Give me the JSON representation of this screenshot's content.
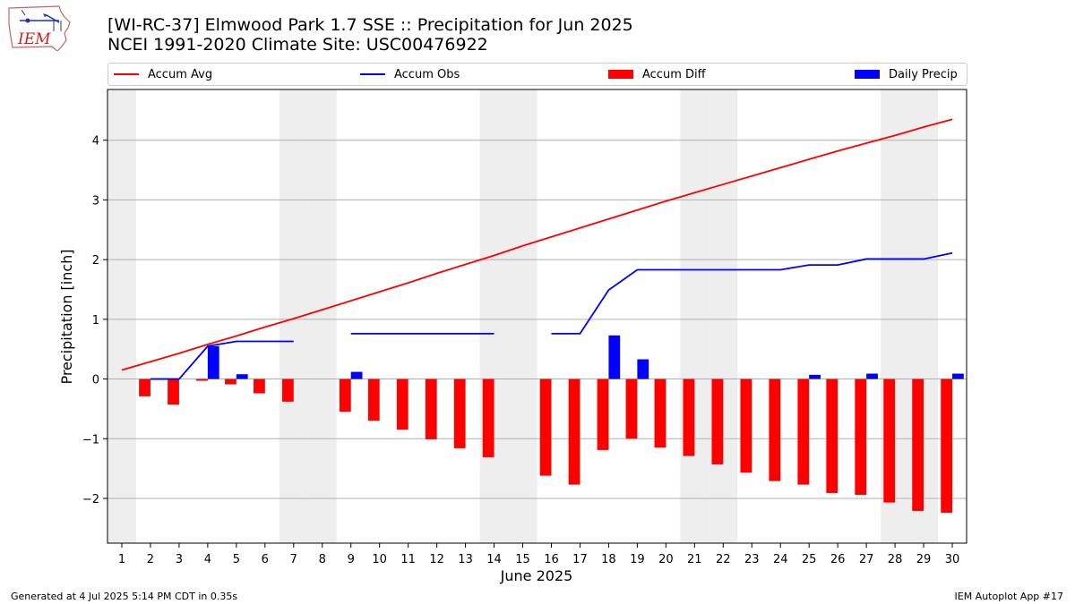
{
  "header": {
    "title_line1": "[WI-RC-37] Elmwood Park 1.7 SSE :: Precipitation for Jun 2025",
    "title_line2": "NCEI 1991-2020 Climate Site: USC00476922"
  },
  "logo": {
    "text": "IEM",
    "icon": "iowa-state-outline-logo"
  },
  "footer": {
    "left": "Generated at 4 Jul 2025 5:14 PM CDT in 0.35s",
    "right": "IEM Autoplot App #17"
  },
  "colors": {
    "accum_avg": "#ff0000",
    "accum_obs": "#0000ff",
    "accum_diff": "#ff0000",
    "daily_precip": "#0000ff",
    "weekend_shade": "#eeeeee",
    "grid": "#b0b0b0"
  },
  "chart_data": {
    "type": "bar",
    "title": "[WI-RC-37] Elmwood Park 1.7 SSE :: Precipitation for Jun 2025",
    "xlabel": "June 2025",
    "ylabel": "Precipitation [inch]",
    "x": [
      1,
      2,
      3,
      4,
      5,
      6,
      7,
      8,
      9,
      10,
      11,
      12,
      13,
      14,
      15,
      16,
      17,
      18,
      19,
      20,
      21,
      22,
      23,
      24,
      25,
      26,
      27,
      28,
      29,
      30
    ],
    "xlim": [
      0.5,
      30.5
    ],
    "ylim": [
      -2.75,
      4.85
    ],
    "yticks": [
      -2,
      -1,
      0,
      1,
      2,
      3,
      4
    ],
    "ytick_labels": [
      "−2",
      "−1",
      "0",
      "1",
      "2",
      "3",
      "4"
    ],
    "grid": "horizontal",
    "legend_position": "top",
    "legend": [
      "Accum Avg",
      "Accum Obs",
      "Accum Diff",
      "Daily Precip"
    ],
    "weekend_days": [
      1,
      7,
      8,
      14,
      15,
      21,
      22,
      28,
      29
    ],
    "series": [
      {
        "name": "Accum Avg",
        "kind": "line",
        "values": [
          0.15,
          0.29,
          0.43,
          0.58,
          0.72,
          0.87,
          1.01,
          1.16,
          1.31,
          1.46,
          1.61,
          1.77,
          1.92,
          2.07,
          2.23,
          2.38,
          2.53,
          2.68,
          2.83,
          2.98,
          3.12,
          3.26,
          3.4,
          3.54,
          3.68,
          3.82,
          3.95,
          4.08,
          4.22,
          4.35
        ]
      },
      {
        "name": "Accum Obs",
        "kind": "line",
        "values": [
          null,
          0.0,
          0.0,
          0.55,
          0.63,
          0.63,
          0.63,
          null,
          0.76,
          0.76,
          0.76,
          0.76,
          0.76,
          0.76,
          null,
          0.76,
          0.76,
          1.49,
          1.83,
          1.83,
          1.83,
          1.83,
          1.83,
          1.83,
          1.91,
          1.91,
          2.01,
          2.01,
          2.01,
          2.11
        ]
      },
      {
        "name": "Accum Diff",
        "kind": "bar",
        "values": [
          null,
          -0.29,
          -0.43,
          -0.03,
          -0.09,
          -0.24,
          -0.38,
          null,
          -0.55,
          -0.7,
          -0.85,
          -1.01,
          -1.16,
          -1.31,
          null,
          -1.62,
          -1.77,
          -1.19,
          -1.0,
          -1.15,
          -1.29,
          -1.43,
          -1.57,
          -1.71,
          -1.77,
          -1.91,
          -1.94,
          -2.07,
          -2.21,
          -2.24
        ]
      },
      {
        "name": "Daily Precip",
        "kind": "bar",
        "values": [
          0,
          0,
          0,
          0.55,
          0.08,
          0,
          0,
          0,
          0.12,
          0,
          0,
          0,
          0,
          0,
          0,
          0,
          0,
          0.73,
          0.33,
          0,
          0,
          0,
          0,
          0,
          0.07,
          0,
          0.09,
          0,
          0,
          0.09
        ]
      }
    ]
  }
}
